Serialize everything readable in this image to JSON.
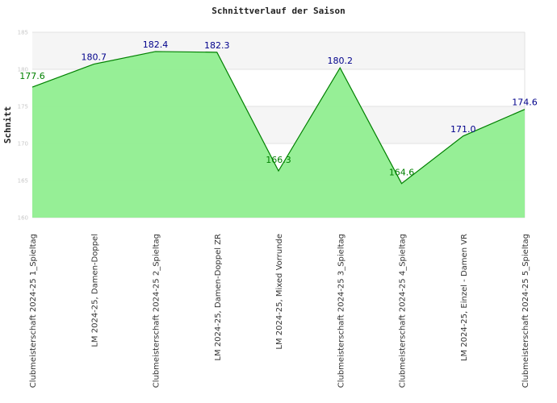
{
  "chart_data": {
    "type": "area",
    "title": "Schnittverlauf der Saison",
    "xlabel": "",
    "ylabel": "Schnitt",
    "ylim": [
      160,
      185
    ],
    "yticks": [
      160,
      165,
      170,
      175,
      180,
      185
    ],
    "categories": [
      "Clubmeisterschaft 2024-25   1_Spieltag",
      "LM 2024-25, Damen-Doppel",
      "Clubmeisterschaft 2024-25   2_Spieltag",
      "LM 2024-25, Damen-Doppel ZR",
      "LM 2024-25, Mixed Vorrunde",
      "Clubmeisterschaft 2024-25   3_Spieltag",
      "Clubmeisterschaft 2024-25   4_Spieltag",
      "LM 2024-25, Einzel - Damen VR",
      "Clubmeisterschaft 2024-25   5_Spieltag"
    ],
    "series": [
      {
        "values": [
          177.6,
          180.7,
          182.4,
          182.3,
          166.3,
          180.2,
          164.6,
          171.0,
          174.6
        ],
        "labels": [
          "177.6",
          "180.7",
          "182.4",
          "182.3",
          "166.3",
          "180.2",
          "164.6",
          "171.0",
          "174.6"
        ],
        "fill_color": "#90ee90",
        "line_color": "#008000"
      }
    ],
    "grid": true,
    "band_colors": [
      "#f5f5f5",
      "#ffffff"
    ],
    "label_colors": {
      "above": "#00008b",
      "below": "#008000"
    }
  }
}
